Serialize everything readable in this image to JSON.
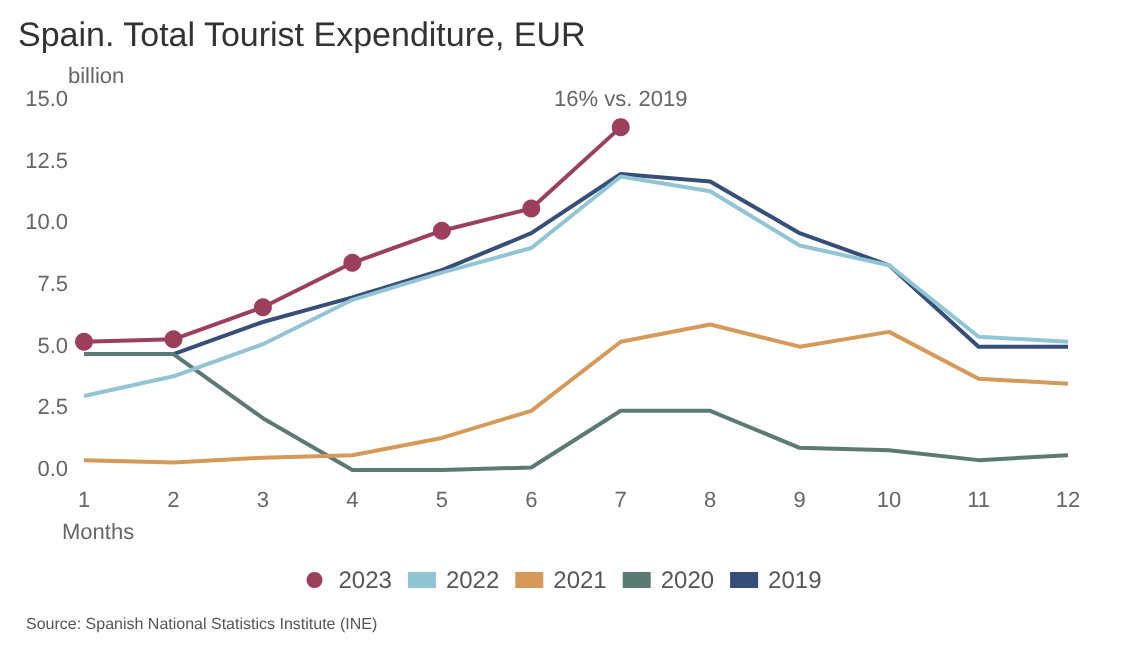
{
  "chart_data": {
    "type": "line",
    "title": "Spain. Total Tourist Expenditure, EUR",
    "ylabel": "billion",
    "xlabel": "Months",
    "x": [
      1,
      2,
      3,
      4,
      5,
      6,
      7,
      8,
      9,
      10,
      11,
      12
    ],
    "xlim": [
      1,
      12
    ],
    "xticks": [
      1,
      2,
      3,
      4,
      5,
      6,
      7,
      8,
      9,
      10,
      11,
      12
    ],
    "series": [
      {
        "name": "2023",
        "color": "#9b3f5c",
        "marker": "circle",
        "values": [
          5.2,
          5.3,
          6.6,
          8.4,
          9.7,
          10.6,
          13.9,
          null,
          null,
          null,
          null,
          null
        ]
      },
      {
        "name": "2022",
        "color": "#92c5d3",
        "values": [
          3.0,
          3.8,
          5.1,
          6.9,
          8.0,
          9.0,
          11.9,
          11.3,
          9.1,
          8.3,
          5.4,
          5.2
        ]
      },
      {
        "name": "2021",
        "color": "#d59a5a",
        "values": [
          0.4,
          0.3,
          0.5,
          0.6,
          1.3,
          2.4,
          5.2,
          5.9,
          5.0,
          5.6,
          3.7,
          3.5
        ]
      },
      {
        "name": "2020",
        "color": "#5b7a73",
        "values": [
          4.7,
          4.7,
          2.1,
          0.0,
          0.0,
          0.1,
          2.4,
          2.4,
          0.9,
          0.8,
          0.4,
          0.6
        ]
      },
      {
        "name": "2019",
        "color": "#364e78",
        "values": [
          4.7,
          4.7,
          6.0,
          7.0,
          8.1,
          9.6,
          12.0,
          11.7,
          9.6,
          8.3,
          5.0,
          5.0
        ]
      }
    ],
    "ylim": [
      0,
      15
    ],
    "yticks": [
      {
        "value": 0,
        "label": "0.0"
      },
      {
        "value": 2.5,
        "label": "2.5"
      },
      {
        "value": 5,
        "label": "5.0"
      },
      {
        "value": 7.5,
        "label": "7.5"
      },
      {
        "value": 10,
        "label": "10.0"
      },
      {
        "value": 12.5,
        "label": "12.5"
      },
      {
        "value": 15,
        "label": "15.0"
      }
    ],
    "grid": false,
    "legend": "bottom",
    "marker": "none",
    "annotations": [
      {
        "text": "16% vs. 2019",
        "x": 7,
        "y": 13.9
      },
      "Source: Spanish National Statistics Institute (INE)"
    ]
  }
}
